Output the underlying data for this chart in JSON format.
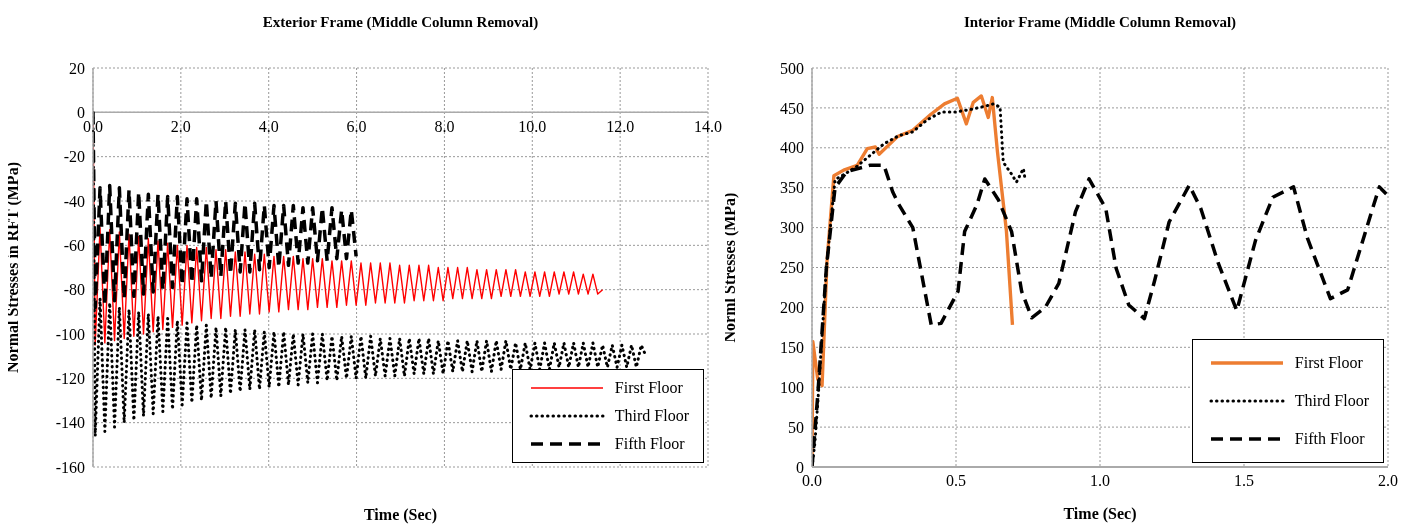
{
  "chart_data": [
    {
      "type": "line",
      "title": "Exterior Frame (Middle Column Removal)",
      "xlabel": "Time (Sec)",
      "ylabel": "Normal Stresses in RFT  (MPa)",
      "x": [
        0,
        0.05,
        0.16,
        0.27,
        0.38,
        0.49,
        0.6,
        0.71,
        0.82,
        0.93,
        1.04,
        1.15,
        1.26,
        1.37,
        1.48,
        1.59,
        1.7,
        1.81,
        1.92,
        2.03,
        2.14,
        2.25,
        2.36,
        2.47,
        2.58,
        2.69,
        2.8,
        2.91,
        3.02,
        3.13,
        3.24,
        3.35,
        3.46,
        3.57,
        3.68,
        3.79,
        3.9,
        4.01,
        4.12,
        4.23,
        4.34,
        4.45,
        4.56,
        4.67,
        4.78,
        4.89,
        5,
        5.11,
        5.22,
        5.33,
        5.44,
        5.55,
        5.66,
        5.77,
        5.88,
        5.99,
        6.1,
        6.21,
        6.32,
        6.43,
        6.54,
        6.65,
        6.76,
        6.87,
        6.98,
        7.09,
        7.2,
        7.31,
        7.42,
        7.53,
        7.64,
        7.75,
        7.86,
        7.97,
        8.08,
        8.19,
        8.3,
        8.41,
        8.52,
        8.63,
        8.74,
        8.85,
        8.96,
        9.07,
        9.18,
        9.29,
        9.4,
        9.51,
        9.62,
        9.73,
        9.84,
        9.95,
        10.06,
        10.17,
        10.28,
        10.39,
        10.5,
        10.61,
        10.72,
        10.83,
        10.94,
        11.05,
        11.16,
        11.27,
        11.38,
        11.49,
        11.6,
        11.71,
        11.82,
        11.93,
        12.04,
        12.15,
        12.26,
        12.37,
        12.48,
        12.59
      ],
      "series": [
        {
          "name": "First Floor",
          "color": "#ff0000",
          "line_style": "solid",
          "values": [
            0,
            -105,
            -52,
            -104,
            -53,
            -103,
            -54,
            -102,
            -55,
            -101,
            -56,
            -100,
            -57,
            -99,
            -58,
            -98,
            -59,
            -97,
            -60,
            -96,
            -60,
            -95,
            -61,
            -94,
            -61,
            -93,
            -62,
            -93,
            -62,
            -92,
            -63,
            -92,
            -63,
            -91,
            -64,
            -91,
            -64,
            -90,
            -65,
            -90,
            -65,
            -89,
            -65,
            -89,
            -66,
            -89,
            -66,
            -88,
            -66,
            -88,
            -67,
            -88,
            -67,
            -87,
            -67,
            -87,
            -68,
            -87,
            -68,
            -86,
            -68,
            -86,
            -68,
            -86,
            -69,
            -86,
            -69,
            -85,
            -69,
            -85,
            -69,
            -85,
            -70,
            -85,
            -70,
            -84,
            -70,
            -84,
            -70,
            -84,
            -71,
            -84,
            -71,
            -84,
            -71,
            -83,
            -71,
            -83,
            -71,
            -83,
            -72,
            -83,
            -72,
            -83,
            -72,
            -83,
            -72,
            -82,
            -72,
            -82,
            -72,
            -82,
            -73,
            -82,
            -73,
            -82,
            -80,
            null,
            null,
            null,
            null,
            null,
            null,
            null,
            null,
            null
          ]
        },
        {
          "name": "Third Floor",
          "color": "#000000",
          "line_style": "dotted",
          "values": [
            0,
            -146,
            -84,
            -144,
            -86,
            -142,
            -88,
            -140,
            -89,
            -139,
            -90,
            -137,
            -91,
            -136,
            -92,
            -135,
            -93,
            -134,
            -94,
            -132,
            -95,
            -131,
            -96,
            -130,
            -96,
            -129,
            -97,
            -128,
            -97,
            -127,
            -98,
            -126,
            -98,
            -125,
            -98,
            -125,
            -99,
            -124,
            -99,
            -124,
            -99,
            -123,
            -100,
            -123,
            -100,
            -122,
            -100,
            -122,
            -100,
            -121,
            -101,
            -121,
            -101,
            -120,
            -101,
            -120,
            -101,
            -120,
            -101,
            -119,
            -102,
            -119,
            -102,
            -119,
            -102,
            -119,
            -102,
            -118,
            -102,
            -118,
            -102,
            -118,
            -103,
            -118,
            -103,
            -117,
            -103,
            -117,
            -103,
            -117,
            -103,
            -117,
            -103,
            -117,
            -103,
            -116,
            -103,
            -116,
            -104,
            -116,
            -104,
            -116,
            -104,
            -116,
            -104,
            -116,
            -104,
            -115,
            -104,
            -115,
            -104,
            -115,
            -104,
            -115,
            -104,
            -115,
            -105,
            -115,
            -105,
            -115,
            -105,
            -115,
            -105,
            -115,
            -105,
            -110
          ]
        },
        {
          "name": "Fifth Floor",
          "color": "#000000",
          "line_style": "dashed",
          "values": [
            0,
            -88,
            -34,
            -87,
            -33,
            -85,
            -34,
            -84,
            -35,
            -83,
            -36,
            -82,
            -37,
            -81,
            -37,
            -80,
            -38,
            -79,
            -38,
            -78,
            -39,
            -77,
            -39,
            -76,
            -40,
            -75,
            -40,
            -74,
            -40,
            -73,
            -41,
            -72,
            -41,
            -72,
            -41,
            -71,
            -42,
            -70,
            -42,
            -70,
            -42,
            -69,
            -42,
            -68,
            -43,
            -68,
            -43,
            -67,
            -43,
            -67,
            -43,
            -66,
            -44,
            -66,
            -44,
            -65,
            null,
            null,
            null,
            null,
            null,
            null,
            null,
            null,
            null,
            null,
            null,
            null,
            null,
            null,
            null,
            null,
            null,
            null,
            null,
            null,
            null,
            null,
            null,
            null,
            null,
            null,
            null,
            null,
            null,
            null,
            null,
            null,
            null,
            null,
            null,
            null,
            null,
            null,
            null,
            null,
            null,
            null,
            null,
            null,
            null,
            null,
            null,
            null,
            null,
            null,
            null,
            null,
            null,
            null,
            null,
            null,
            null,
            null,
            null,
            null
          ]
        }
      ],
      "xlim": [
        0,
        14
      ],
      "xticks": [
        {
          "value": 0,
          "label": "0.0"
        },
        {
          "value": 2,
          "label": "2.0"
        },
        {
          "value": 4,
          "label": "4.0"
        },
        {
          "value": 6,
          "label": "6.0"
        },
        {
          "value": 8,
          "label": "8.0"
        },
        {
          "value": 10,
          "label": "10.0"
        },
        {
          "value": 12,
          "label": "12.0"
        },
        {
          "value": 14,
          "label": "14.0"
        }
      ],
      "ylim": [
        -160,
        20
      ],
      "yticks": [
        -160,
        -140,
        -120,
        -100,
        -80,
        -60,
        -40,
        -20,
        0,
        20
      ],
      "grid": true,
      "legend": "bottom right"
    },
    {
      "type": "line",
      "title": "Interior Frame (Middle Column Removal)",
      "xlabel": "Time (Sec)",
      "ylabel": "Norml Stresses (MPa)",
      "series": [
        {
          "name": "First Floor",
          "color": "#ed7d31",
          "line_style": "solid",
          "x": [
            0,
            0.003,
            0.02,
            0.035,
            0.052,
            0.076,
            0.11,
            0.157,
            0.192,
            0.22,
            0.233,
            0.297,
            0.35,
            0.413,
            0.46,
            0.505,
            0.536,
            0.56,
            0.588,
            0.612,
            0.626,
            0.644,
            0.675,
            0.696
          ],
          "values": [
            0,
            157,
            110,
            102,
            257,
            365,
            372,
            378,
            399,
            401,
            392,
            414,
            422,
            442,
            455,
            462,
            430,
            457,
            465,
            438,
            463,
            395,
            296,
            178
          ]
        },
        {
          "name": "Third Floor",
          "color": "#000000",
          "line_style": "dotted",
          "x": [
            0,
            0.01,
            0.02,
            0.05,
            0.08,
            0.15,
            0.2,
            0.25,
            0.3,
            0.35,
            0.4,
            0.45,
            0.5,
            0.55,
            0.6,
            0.63,
            0.653,
            0.664,
            0.693,
            0.71,
            0.734,
            0.74
          ],
          "values": [
            0,
            30,
            80,
            250,
            360,
            375,
            390,
            405,
            415,
            420,
            435,
            445,
            445,
            448,
            452,
            455,
            451,
            382,
            367,
            357,
            374,
            360
          ]
        },
        {
          "name": "Fifth Floor",
          "color": "#000000",
          "line_style": "dashed",
          "x": [
            0,
            0.02,
            0.05,
            0.08,
            0.12,
            0.2,
            0.25,
            0.28,
            0.3,
            0.35,
            0.414,
            0.448,
            0.507,
            0.53,
            0.573,
            0.6,
            0.647,
            0.693,
            0.728,
            0.763,
            0.81,
            0.857,
            0.915,
            0.962,
            1.02,
            1.056,
            1.1,
            1.154,
            1.19,
            1.24,
            1.31,
            1.35,
            1.41,
            1.475,
            1.54,
            1.6,
            1.672,
            1.72,
            1.8,
            1.86,
            1.95,
            1.97,
            2.0
          ],
          "values": [
            0,
            90,
            250,
            350,
            370,
            378,
            378,
            345,
            330,
            300,
            178,
            180,
            220,
            295,
            329,
            361,
            335,
            295,
            220,
            187,
            200,
            230,
            320,
            361,
            324,
            249,
            203,
            186,
            234,
            307,
            353,
            324,
            256,
            196,
            284,
            338,
            351,
            287,
            211,
            222,
            328,
            351,
            340
          ]
        }
      ],
      "xlim": [
        0,
        2
      ],
      "xticks": [
        {
          "value": 0,
          "label": "0.0"
        },
        {
          "value": 0.5,
          "label": "0.5"
        },
        {
          "value": 1,
          "label": "1.0"
        },
        {
          "value": 1.5,
          "label": "1.5"
        },
        {
          "value": 2,
          "label": "2.0"
        }
      ],
      "ylim": [
        0,
        500
      ],
      "yticks": [
        0,
        50,
        100,
        150,
        200,
        250,
        300,
        350,
        400,
        450,
        500
      ],
      "grid": true,
      "legend": "bottom right"
    }
  ]
}
